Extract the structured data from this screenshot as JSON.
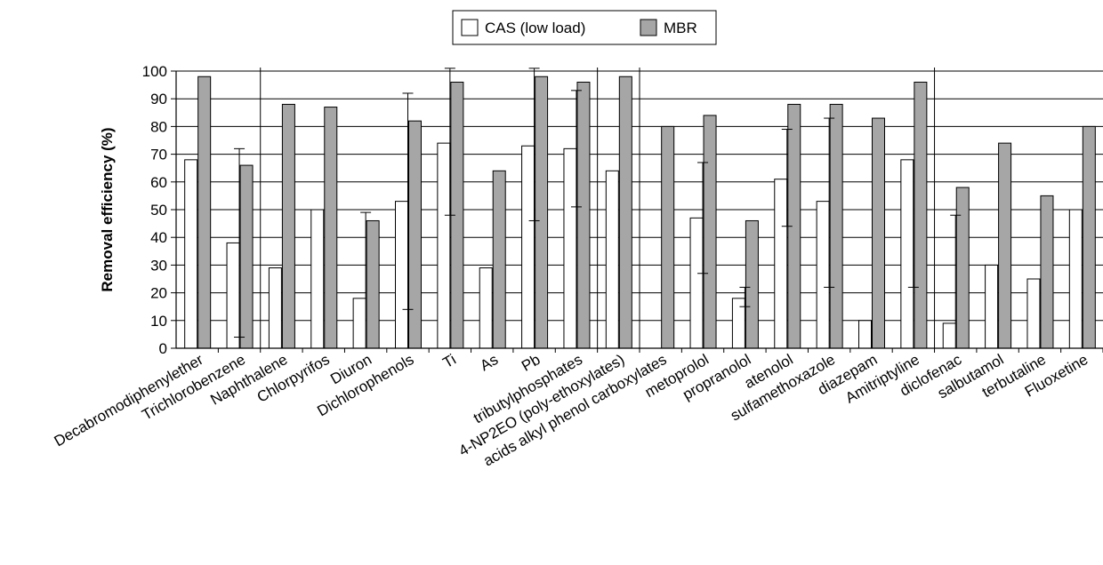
{
  "chart_data": {
    "type": "bar",
    "ylabel": "Removal efficiency (%)",
    "ylim": [
      0,
      100
    ],
    "yticks": [
      "0",
      "10",
      "20",
      "30",
      "40",
      "50",
      "60",
      "70",
      "80",
      "90",
      "100"
    ],
    "grid": "horizontal",
    "legend_position": "top-center",
    "categories": [
      "Decabromodiphenylether",
      "Trichlorobenzene",
      "Naphthalene",
      "Chlorpyrifos",
      "Diuron",
      "Dichlorophenols",
      "Ti",
      "As",
      "Pb",
      "tributylphosphates",
      "4-NP2EO (poly-ethoxylates)",
      "acids alkyl phenol carboxylates",
      "metoprolol",
      "propranolol",
      "atenolol",
      "sulfamethoxazole",
      "diazepam",
      "Amitriptyline",
      "diclofenac",
      "salbutamol",
      "terbutaline",
      "Fluoxetine"
    ],
    "series": [
      {
        "name": "CAS (low load)",
        "color": "#ffffff",
        "values": [
          68,
          38,
          29,
          50,
          18,
          53,
          74,
          29,
          73,
          72,
          64,
          null,
          47,
          18,
          61,
          53,
          10,
          68,
          9,
          30,
          25,
          50
        ],
        "err_low": [
          null,
          4,
          null,
          null,
          null,
          14,
          48,
          null,
          46,
          51,
          null,
          null,
          27,
          15,
          44,
          22,
          null,
          22,
          null,
          null,
          null,
          null
        ],
        "err_high": [
          null,
          72,
          null,
          null,
          49,
          92,
          101,
          null,
          101,
          93,
          null,
          null,
          67,
          22,
          79,
          83,
          null,
          null,
          48,
          null,
          null,
          null
        ]
      },
      {
        "name": "MBR",
        "color": "#a6a6a6",
        "values": [
          98,
          66,
          88,
          87,
          46,
          82,
          96,
          64,
          98,
          96,
          98,
          80,
          84,
          46,
          88,
          88,
          83,
          96,
          58,
          74,
          55,
          80
        ]
      }
    ],
    "group_separators_after": [
      "Trichlorobenzene",
      "tributylphosphates",
      "4-NP2EO (poly-ethoxylates)",
      "Amitriptyline"
    ]
  }
}
